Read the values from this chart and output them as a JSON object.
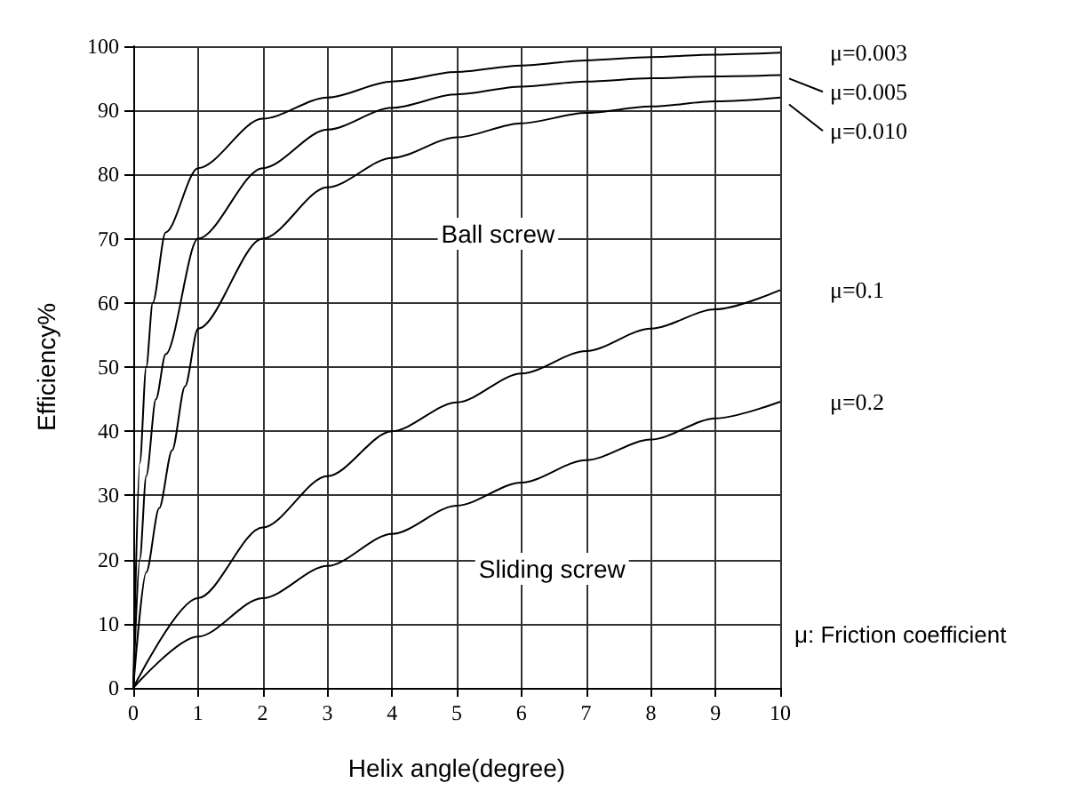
{
  "chart_data": {
    "type": "line",
    "xlabel": "Helix angle(degree)",
    "ylabel": "Efficiency%",
    "xlim": [
      0,
      10
    ],
    "ylim": [
      0,
      100
    ],
    "xticks": [
      0,
      1,
      2,
      3,
      4,
      5,
      6,
      7,
      8,
      9,
      10
    ],
    "yticks": [
      0,
      10,
      20,
      30,
      40,
      50,
      60,
      70,
      80,
      90,
      100
    ],
    "grid": true,
    "marker": "none",
    "line_style": "solid",
    "series": [
      {
        "name": "μ=0.003",
        "color": "#000000",
        "x": [
          0,
          0.1,
          0.2,
          0.3,
          0.5,
          1,
          2,
          3,
          4,
          5,
          6,
          7,
          8,
          9,
          10
        ],
        "values": [
          0,
          35,
          50,
          60,
          71,
          81,
          88.7,
          92,
          94.5,
          96,
          97,
          97.8,
          98.3,
          98.7,
          99
        ]
      },
      {
        "name": "μ=0.005",
        "color": "#000000",
        "x": [
          0,
          0.1,
          0.2,
          0.35,
          0.5,
          1,
          2,
          3,
          4,
          5,
          6,
          7,
          8,
          9,
          10
        ],
        "values": [
          0,
          20,
          33,
          45,
          52,
          70,
          81,
          87,
          90.4,
          92.5,
          93.7,
          94.5,
          95,
          95.3,
          95.5
        ]
      },
      {
        "name": "μ=0.010",
        "color": "#000000",
        "x": [
          0,
          0.2,
          0.4,
          0.6,
          0.8,
          1,
          2,
          3,
          4,
          5,
          6,
          7,
          8,
          9,
          10
        ],
        "values": [
          0,
          18,
          28,
          37,
          47,
          56,
          70,
          78,
          82.6,
          85.8,
          88,
          89.6,
          90.6,
          91.4,
          92
        ]
      },
      {
        "name": "μ=0.1",
        "color": "#000000",
        "x": [
          0,
          1,
          2,
          3,
          4,
          5,
          6,
          7,
          8,
          9,
          10
        ],
        "values": [
          0,
          14,
          25,
          33,
          40,
          44.5,
          49,
          52.5,
          56,
          59,
          62
        ]
      },
      {
        "name": "μ=0.2",
        "color": "#000000",
        "x": [
          0,
          1,
          2,
          3,
          4,
          5,
          6,
          7,
          8,
          9,
          10
        ],
        "values": [
          0,
          8,
          14,
          19,
          24,
          28.4,
          32,
          35.5,
          38.7,
          42,
          44.6
        ]
      }
    ],
    "annotations": [
      "Ball screw",
      "Sliding screw",
      "μ: Friction coefficient"
    ]
  }
}
